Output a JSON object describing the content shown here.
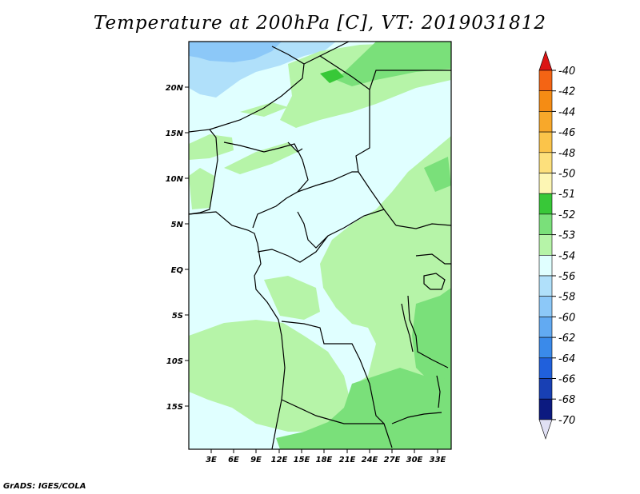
{
  "title": "Temperature at 200hPa [C], VT: 2019031812",
  "credit": "GrADS: IGES/COLA",
  "lat_labels": [
    "20N",
    "15N",
    "10N",
    "5N",
    "EQ",
    "5S",
    "10S",
    "15S"
  ],
  "lon_labels": [
    "3E",
    "6E",
    "9E",
    "12E",
    "15E",
    "18E",
    "21E",
    "24E",
    "27E",
    "30E",
    "33E"
  ],
  "colorbar": {
    "levels": [
      {
        "label": "-40",
        "color": "#f03c1e"
      },
      {
        "label": "-42",
        "color": "#f46414"
      },
      {
        "label": "-44",
        "color": "#f58c14"
      },
      {
        "label": "-46",
        "color": "#f8a82a"
      },
      {
        "label": "-48",
        "color": "#fbc44a"
      },
      {
        "label": "-50",
        "color": "#fde07c"
      },
      {
        "label": "-51",
        "color": "#fdf6b4"
      },
      {
        "label": "-52",
        "color": "#38c838"
      },
      {
        "label": "-53",
        "color": "#7ae07a"
      },
      {
        "label": "-54",
        "color": "#b6f4a8"
      },
      {
        "label": "-56",
        "color": "#e0ffff"
      },
      {
        "label": "-58",
        "color": "#b0e0fa"
      },
      {
        "label": "-60",
        "color": "#8cc8f8"
      },
      {
        "label": "-62",
        "color": "#62aaf2"
      },
      {
        "label": "-64",
        "color": "#3a8aea"
      },
      {
        "label": "-66",
        "color": "#2060dc"
      },
      {
        "label": "-68",
        "color": "#1840b4"
      },
      {
        "label": "-70",
        "color": "#0c1a80"
      }
    ],
    "top_arrow_color": "#dc1414",
    "bottom_arrow_color": "#e0e0f4"
  },
  "field_colors": {
    "background": "#e0ffff",
    "light_green": "#b6f4a8",
    "mid_green": "#7ae07a",
    "dark_green": "#38c838",
    "light_blue": "#b0e0fa",
    "mid_blue": "#8cc8f8"
  }
}
